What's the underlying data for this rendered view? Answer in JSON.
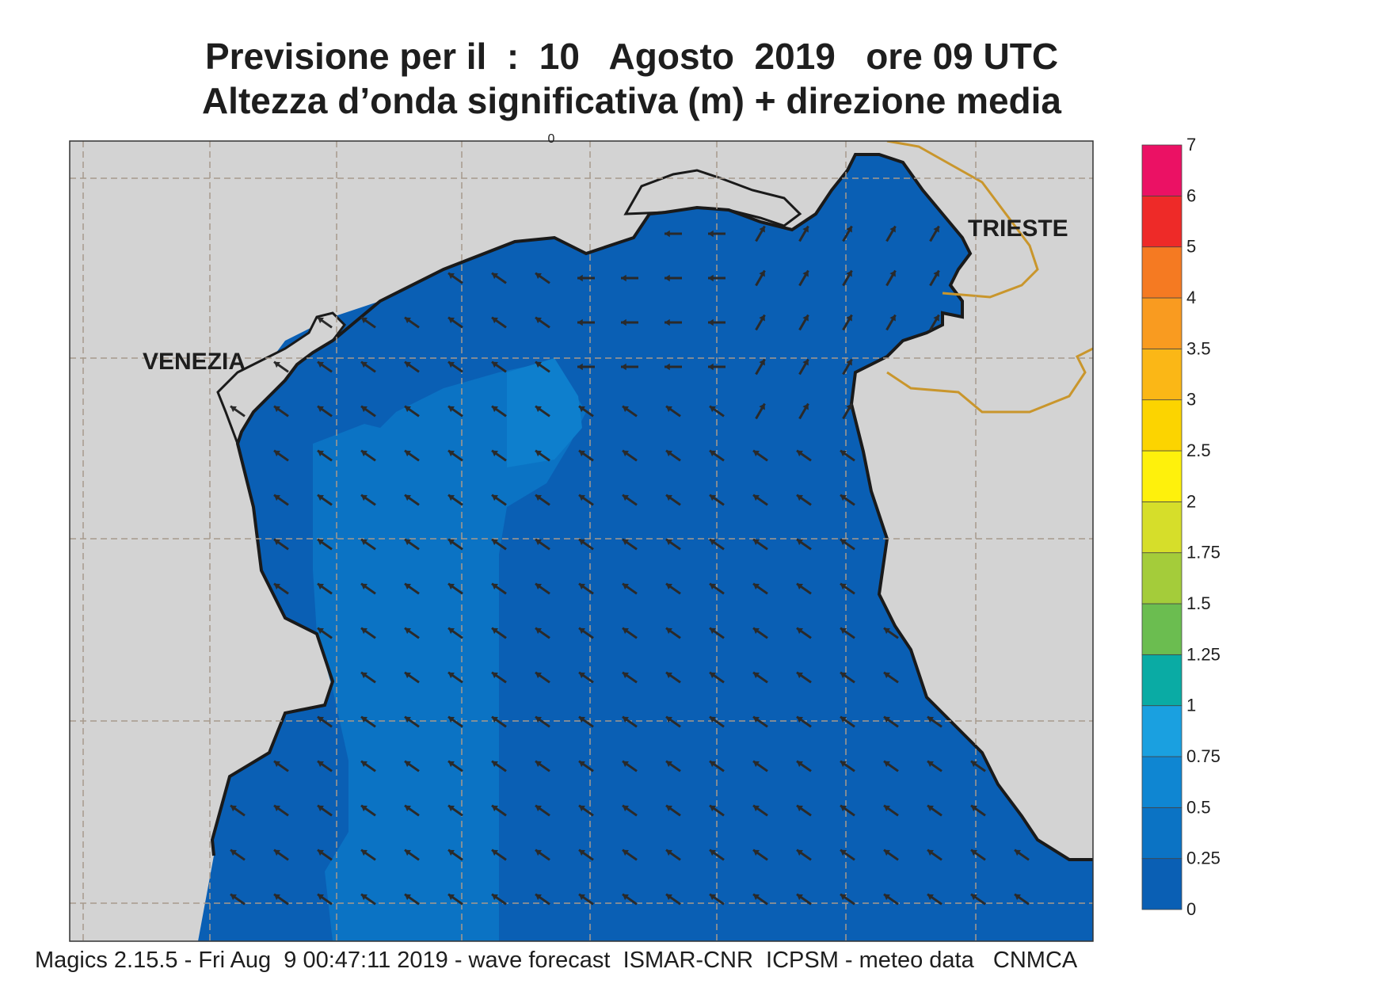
{
  "title_line1": "Previsione per il  :  10   Agosto  2019   ore 09 UTC",
  "title_line2": "Altezza d’onda significativa (m) + direzione media",
  "footer": "Magics 2.15.5 - Fri Aug  9 00:47:11 2019 - wave forecast  ISMAR-CNR  ICPSM - meteo data   CNMCA",
  "cities": {
    "venezia": "VENEZIA",
    "trieste": "TRIESTE"
  },
  "colorbar": {
    "levels": [
      "0",
      "0.25",
      "0.5",
      "0.75",
      "1",
      "1.25",
      "1.5",
      "1.75",
      "2",
      "2.5",
      "3",
      "3.5",
      "4",
      "5",
      "6",
      "7"
    ],
    "colors": [
      "#0a5fb4",
      "#0b73c4",
      "#0f86d2",
      "#1aa0e0",
      "#0aaba4",
      "#6bbd50",
      "#a4cc3a",
      "#d6de2a",
      "#fef10c",
      "#fcd400",
      "#fbb716",
      "#f99b20",
      "#f57a22",
      "#ee2a28",
      "#eb1164"
    ]
  },
  "colors": {
    "land": "#d3d3d3",
    "sea": "#0a5fb4",
    "sea_mid": "#0b73c4",
    "sea_high": "#0f86d2",
    "coast": "#1a1a1a",
    "border": "#c9962c",
    "grid": "#a89a8c",
    "arrow": "#2a2a2a"
  },
  "wave_direction_field": "mostly toward north-west, near Trieste toward north-east",
  "top_marker": "0"
}
